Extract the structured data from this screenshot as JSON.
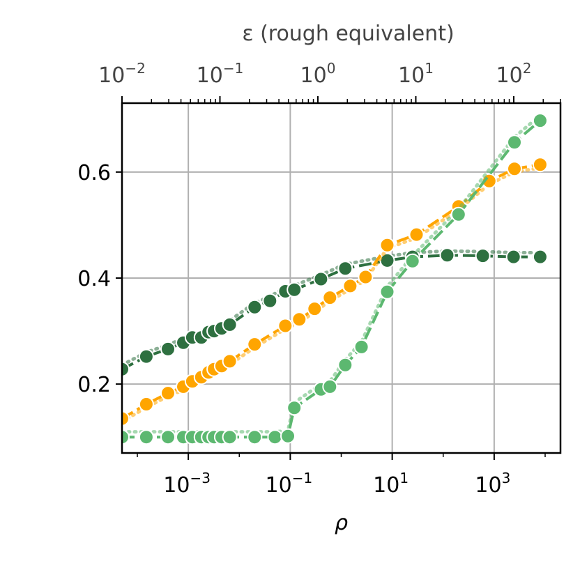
{
  "chart_data": {
    "type": "line",
    "xlabel": "ρ",
    "top_xlabel": "ε (rough equivalent)",
    "ylabel": "",
    "x_scale": "log",
    "xlim": [
      5e-05,
      20000
    ],
    "ylim": [
      0.07,
      0.73
    ],
    "grid": true,
    "yticks": [
      {
        "value": 0.2,
        "label": "0.2"
      },
      {
        "value": 0.4,
        "label": "0.4"
      },
      {
        "value": 0.6,
        "label": "0.6"
      }
    ],
    "xticks": [
      {
        "value": 0.001,
        "base": "10",
        "exp": "−3"
      },
      {
        "value": 0.1,
        "base": "10",
        "exp": "−1"
      },
      {
        "value": 10,
        "base": "10",
        "exp": "1"
      },
      {
        "value": 1000,
        "base": "10",
        "exp": "3"
      }
    ],
    "top_axis": {
      "xlim": [
        0.01,
        300
      ],
      "scale": "log",
      "ticks": [
        {
          "value": 0.01,
          "base": "10",
          "exp": "−2"
        },
        {
          "value": 0.1,
          "base": "10",
          "exp": "−1"
        },
        {
          "value": 1,
          "base": "10",
          "exp": "0"
        },
        {
          "value": 10,
          "base": "10",
          "exp": "1"
        },
        {
          "value": 100,
          "base": "10",
          "exp": "2"
        }
      ]
    },
    "series": [
      {
        "color": "#2e7040",
        "dotted_y_offset": 0.008,
        "points": [
          [
            5e-05,
            0.228
          ],
          [
            0.00015,
            0.252
          ],
          [
            0.0004,
            0.266
          ],
          [
            0.0008,
            0.278
          ],
          [
            0.0012,
            0.288
          ],
          [
            0.0018,
            0.288
          ],
          [
            0.0025,
            0.298
          ],
          [
            0.0032,
            0.3
          ],
          [
            0.0045,
            0.305
          ],
          [
            0.0065,
            0.312
          ],
          [
            0.02,
            0.345
          ],
          [
            0.04,
            0.357
          ],
          [
            0.08,
            0.375
          ],
          [
            0.12,
            0.378
          ],
          [
            0.4,
            0.398
          ],
          [
            1.2,
            0.418
          ],
          [
            8,
            0.433
          ],
          [
            25,
            0.44
          ],
          [
            120,
            0.443
          ],
          [
            600,
            0.442
          ],
          [
            2400,
            0.44
          ],
          [
            8000,
            0.44
          ]
        ]
      },
      {
        "color": "#ffa500",
        "dotted_y_offset": -0.006,
        "points": [
          [
            5e-05,
            0.135
          ],
          [
            0.00015,
            0.162
          ],
          [
            0.0004,
            0.183
          ],
          [
            0.0008,
            0.195
          ],
          [
            0.0012,
            0.205
          ],
          [
            0.0018,
            0.213
          ],
          [
            0.0025,
            0.222
          ],
          [
            0.0032,
            0.228
          ],
          [
            0.0045,
            0.234
          ],
          [
            0.0065,
            0.243
          ],
          [
            0.02,
            0.275
          ],
          [
            0.08,
            0.31
          ],
          [
            0.15,
            0.322
          ],
          [
            0.3,
            0.342
          ],
          [
            0.6,
            0.363
          ],
          [
            1.5,
            0.385
          ],
          [
            3,
            0.402
          ],
          [
            8,
            0.462
          ],
          [
            30,
            0.482
          ],
          [
            200,
            0.535
          ],
          [
            800,
            0.583
          ],
          [
            2500,
            0.606
          ],
          [
            8000,
            0.614
          ]
        ]
      },
      {
        "color": "#5cb870",
        "dotted_y_offset": 0.01,
        "points": [
          [
            5e-05,
            0.1
          ],
          [
            0.00015,
            0.1
          ],
          [
            0.0004,
            0.1
          ],
          [
            0.0008,
            0.1
          ],
          [
            0.0012,
            0.1
          ],
          [
            0.0018,
            0.1
          ],
          [
            0.0025,
            0.1
          ],
          [
            0.0032,
            0.1
          ],
          [
            0.0045,
            0.1
          ],
          [
            0.0065,
            0.1
          ],
          [
            0.02,
            0.1
          ],
          [
            0.05,
            0.1
          ],
          [
            0.09,
            0.102
          ],
          [
            0.12,
            0.155
          ],
          [
            0.4,
            0.19
          ],
          [
            0.6,
            0.195
          ],
          [
            1.2,
            0.236
          ],
          [
            2.5,
            0.27
          ],
          [
            8,
            0.374
          ],
          [
            25,
            0.432
          ],
          [
            200,
            0.52
          ],
          [
            2500,
            0.656
          ],
          [
            8000,
            0.697
          ]
        ]
      }
    ]
  }
}
